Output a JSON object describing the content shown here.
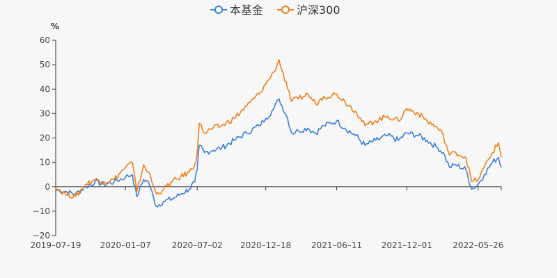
{
  "chart_data": {
    "type": "line",
    "ylabel": "%",
    "ylim": [
      -20,
      60
    ],
    "yticks": [
      60,
      50,
      40,
      30,
      20,
      10,
      0,
      -10,
      -20
    ],
    "xlim": [
      "2019-07-19",
      "2022-07-22"
    ],
    "xticks": [
      "2019-07-19",
      "2020-01-07",
      "2020-07-02",
      "2020-12-18",
      "2021-06-11",
      "2021-12-01",
      "2022-05-26"
    ],
    "grid": false,
    "legend": "top-center",
    "series": [
      {
        "name": "本基金",
        "color": "#3b7fd5",
        "x": [
          "2019-07-19",
          "2019-08-12",
          "2019-09-06",
          "2019-10-01",
          "2019-10-24",
          "2019-11-15",
          "2019-12-10",
          "2020-01-07",
          "2020-01-24",
          "2020-02-04",
          "2020-02-21",
          "2020-03-04",
          "2020-03-23",
          "2020-04-10",
          "2020-05-01",
          "2020-05-22",
          "2020-06-12",
          "2020-06-26",
          "2020-07-02",
          "2020-07-07",
          "2020-07-20",
          "2020-08-10",
          "2020-09-01",
          "2020-10-01",
          "2020-11-01",
          "2020-12-01",
          "2020-12-18",
          "2021-01-07",
          "2021-01-20",
          "2021-02-10",
          "2021-02-20",
          "2021-03-09",
          "2021-04-01",
          "2021-04-20",
          "2021-05-10",
          "2021-06-11",
          "2021-07-01",
          "2021-07-28",
          "2021-08-20",
          "2021-09-15",
          "2021-10-15",
          "2021-11-10",
          "2021-12-01",
          "2021-12-30",
          "2022-01-20",
          "2022-02-15",
          "2022-03-01",
          "2022-03-16",
          "2022-04-01",
          "2022-04-26",
          "2022-05-10",
          "2022-05-26",
          "2022-06-10",
          "2022-06-30",
          "2022-07-15",
          "2022-07-22"
        ],
        "values": [
          -1,
          -2,
          -3,
          0,
          2,
          1,
          2,
          4,
          5,
          -4,
          3,
          2,
          -8,
          -6,
          -5,
          -3,
          -1,
          2,
          7,
          17,
          14,
          15,
          16,
          19,
          22,
          25,
          28,
          32,
          36,
          28,
          22,
          23,
          24,
          22,
          25,
          27,
          24,
          21,
          17,
          19,
          21,
          19,
          22,
          21,
          19,
          16,
          14,
          8,
          9,
          7,
          -1,
          1,
          5,
          10,
          12,
          8
        ]
      },
      {
        "name": "沪深300",
        "color": "#f07f1c",
        "x": [
          "2019-07-19",
          "2019-08-12",
          "2019-09-06",
          "2019-10-01",
          "2019-10-24",
          "2019-11-15",
          "2019-12-10",
          "2020-01-07",
          "2020-01-24",
          "2020-02-04",
          "2020-02-21",
          "2020-03-04",
          "2020-03-23",
          "2020-04-10",
          "2020-05-01",
          "2020-05-22",
          "2020-06-12",
          "2020-06-26",
          "2020-07-02",
          "2020-07-07",
          "2020-07-20",
          "2020-08-10",
          "2020-09-01",
          "2020-10-01",
          "2020-11-01",
          "2020-12-01",
          "2020-12-18",
          "2021-01-07",
          "2021-01-20",
          "2021-02-10",
          "2021-02-20",
          "2021-03-09",
          "2021-04-01",
          "2021-04-20",
          "2021-05-10",
          "2021-06-11",
          "2021-07-01",
          "2021-07-28",
          "2021-08-20",
          "2021-09-15",
          "2021-10-15",
          "2021-11-10",
          "2021-12-01",
          "2021-12-30",
          "2022-01-20",
          "2022-02-15",
          "2022-03-01",
          "2022-03-16",
          "2022-04-01",
          "2022-04-26",
          "2022-05-10",
          "2022-05-26",
          "2022-06-10",
          "2022-06-30",
          "2022-07-15",
          "2022-07-22"
        ],
        "values": [
          0,
          -3,
          -4,
          1,
          3,
          2,
          3,
          8,
          10,
          -2,
          9,
          6,
          -3,
          -1,
          2,
          4,
          6,
          9,
          14,
          26,
          22,
          24,
          25,
          28,
          33,
          38,
          42,
          47,
          52,
          40,
          35,
          36,
          38,
          34,
          37,
          38,
          35,
          31,
          25,
          27,
          29,
          27,
          32,
          30,
          27,
          24,
          21,
          13,
          14,
          12,
          2,
          3,
          8,
          14,
          18,
          12
        ]
      }
    ]
  }
}
